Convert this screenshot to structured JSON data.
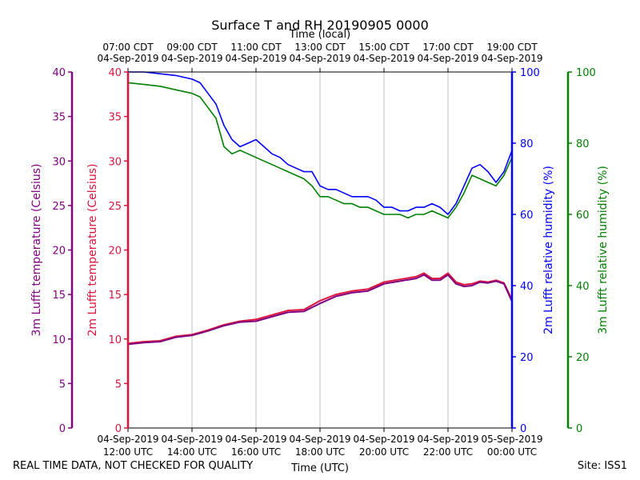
{
  "chart_data": {
    "type": "line",
    "title": "Surface T and RH 20190905 0000",
    "top_axis_label": "Time (local)",
    "xlabel": "Time (UTC)",
    "top_ticks": [
      [
        "07:00 CDT",
        "04-Sep-2019"
      ],
      [
        "09:00 CDT",
        "04-Sep-2019"
      ],
      [
        "11:00 CDT",
        "04-Sep-2019"
      ],
      [
        "13:00 CDT",
        "04-Sep-2019"
      ],
      [
        "15:00 CDT",
        "04-Sep-2019"
      ],
      [
        "17:00 CDT",
        "04-Sep-2019"
      ],
      [
        "19:00 CDT",
        "04-Sep-2019"
      ]
    ],
    "bottom_ticks": [
      [
        "04-Sep-2019",
        "12:00 UTC"
      ],
      [
        "04-Sep-2019",
        "14:00 UTC"
      ],
      [
        "04-Sep-2019",
        "16:00 UTC"
      ],
      [
        "04-Sep-2019",
        "18:00 UTC"
      ],
      [
        "04-Sep-2019",
        "20:00 UTC"
      ],
      [
        "04-Sep-2019",
        "22:00 UTC"
      ],
      [
        "05-Sep-2019",
        "00:00 UTC"
      ]
    ],
    "x_hours_range": [
      12,
      24
    ],
    "axes": {
      "temp_3m": {
        "label": "3m Lufft temperature (Celsius)",
        "color": "#800080",
        "ticks": [
          0,
          5,
          10,
          15,
          20,
          25,
          30,
          35,
          40
        ],
        "ylim": [
          0,
          40
        ]
      },
      "temp_2m": {
        "label": "2m Lufft temperature (Celsius)",
        "color": "#dc143c",
        "ticks": [
          0,
          5,
          10,
          15,
          20,
          25,
          30,
          35,
          40
        ],
        "ylim": [
          0,
          40
        ]
      },
      "rh_2m": {
        "label": "2m Lufft relative humidity (%)",
        "color": "#0000ff",
        "ticks": [
          0,
          20,
          40,
          60,
          80,
          100
        ],
        "ylim": [
          0,
          100
        ]
      },
      "rh_3m": {
        "label": "3m Lufft relative humidity (%)",
        "color": "#008000",
        "ticks": [
          0,
          20,
          40,
          60,
          80,
          100
        ],
        "ylim": [
          0,
          100
        ]
      }
    },
    "series": [
      {
        "name": "2m RH",
        "axis": "rh_2m",
        "color": "#0000ff",
        "x": [
          12.0,
          12.5,
          13.0,
          13.5,
          14.0,
          14.25,
          14.5,
          14.75,
          15.0,
          15.25,
          15.5,
          15.75,
          16.0,
          16.25,
          16.5,
          16.75,
          17.0,
          17.25,
          17.5,
          17.75,
          18.0,
          18.25,
          18.5,
          18.75,
          19.0,
          19.25,
          19.5,
          19.75,
          20.0,
          20.25,
          20.5,
          20.75,
          21.0,
          21.25,
          21.5,
          21.75,
          22.0,
          22.25,
          22.5,
          22.75,
          23.0,
          23.25,
          23.5,
          23.75,
          24.0
        ],
        "y": [
          100,
          100,
          99.5,
          99,
          98,
          97,
          94,
          91,
          85,
          81,
          79,
          80,
          81,
          79,
          77,
          76,
          74,
          73,
          72,
          72,
          68,
          67,
          67,
          66,
          65,
          65,
          65,
          64,
          62,
          62,
          61,
          61,
          62,
          62,
          63,
          62,
          60,
          63,
          68,
          73,
          74,
          72,
          69,
          72,
          78
        ]
      },
      {
        "name": "3m RH",
        "axis": "rh_3m",
        "color": "#008000",
        "x": [
          12.0,
          12.5,
          13.0,
          13.5,
          14.0,
          14.25,
          14.5,
          14.75,
          15.0,
          15.25,
          15.5,
          15.75,
          16.0,
          16.25,
          16.5,
          16.75,
          17.0,
          17.25,
          17.5,
          17.75,
          18.0,
          18.25,
          18.5,
          18.75,
          19.0,
          19.25,
          19.5,
          19.75,
          20.0,
          20.25,
          20.5,
          20.75,
          21.0,
          21.25,
          21.5,
          21.75,
          22.0,
          22.25,
          22.5,
          22.75,
          23.0,
          23.25,
          23.5,
          23.75,
          24.0
        ],
        "y": [
          97,
          96.5,
          96,
          95,
          94,
          93,
          90,
          87,
          79,
          77,
          78,
          77,
          76,
          75,
          74,
          73,
          72,
          71,
          70,
          68,
          65,
          65,
          64,
          63,
          63,
          62,
          62,
          61,
          60,
          60,
          60,
          59,
          60,
          60,
          61,
          60,
          59,
          62,
          66,
          71,
          70,
          69,
          68,
          71,
          76
        ]
      },
      {
        "name": "2m Temperature",
        "axis": "temp_2m",
        "color": "#dc143c",
        "x": [
          12.0,
          12.5,
          13.0,
          13.5,
          14.0,
          14.5,
          15.0,
          15.5,
          16.0,
          16.5,
          17.0,
          17.5,
          18.0,
          18.5,
          19.0,
          19.5,
          20.0,
          20.5,
          21.0,
          21.25,
          21.5,
          21.75,
          22.0,
          22.25,
          22.5,
          22.75,
          23.0,
          23.25,
          23.5,
          23.75,
          24.0
        ],
        "y": [
          9.5,
          9.7,
          9.8,
          10.3,
          10.5,
          11.0,
          11.6,
          12.0,
          12.2,
          12.7,
          13.2,
          13.3,
          14.3,
          15.0,
          15.4,
          15.6,
          16.4,
          16.7,
          17.0,
          17.4,
          16.8,
          16.8,
          17.4,
          16.4,
          16.1,
          16.2,
          16.5,
          16.4,
          16.6,
          16.3,
          14.4
        ]
      },
      {
        "name": "3m Temperature",
        "axis": "temp_3m",
        "color": "#800080",
        "x": [
          12.0,
          12.5,
          13.0,
          13.5,
          14.0,
          14.5,
          15.0,
          15.5,
          16.0,
          16.5,
          17.0,
          17.5,
          18.0,
          18.5,
          19.0,
          19.5,
          20.0,
          20.5,
          21.0,
          21.25,
          21.5,
          21.75,
          22.0,
          22.25,
          22.5,
          22.75,
          23.0,
          23.25,
          23.5,
          23.75,
          24.0
        ],
        "y": [
          9.4,
          9.6,
          9.7,
          10.2,
          10.4,
          10.9,
          11.5,
          11.9,
          12.0,
          12.5,
          13.0,
          13.1,
          14.0,
          14.8,
          15.2,
          15.4,
          16.2,
          16.5,
          16.8,
          17.2,
          16.6,
          16.6,
          17.2,
          16.2,
          15.9,
          16.0,
          16.4,
          16.3,
          16.5,
          16.2,
          14.2
        ]
      }
    ]
  },
  "footer": {
    "disclaimer": "REAL TIME DATA, NOT CHECKED FOR QUALITY",
    "site": "Site: ISS1"
  }
}
